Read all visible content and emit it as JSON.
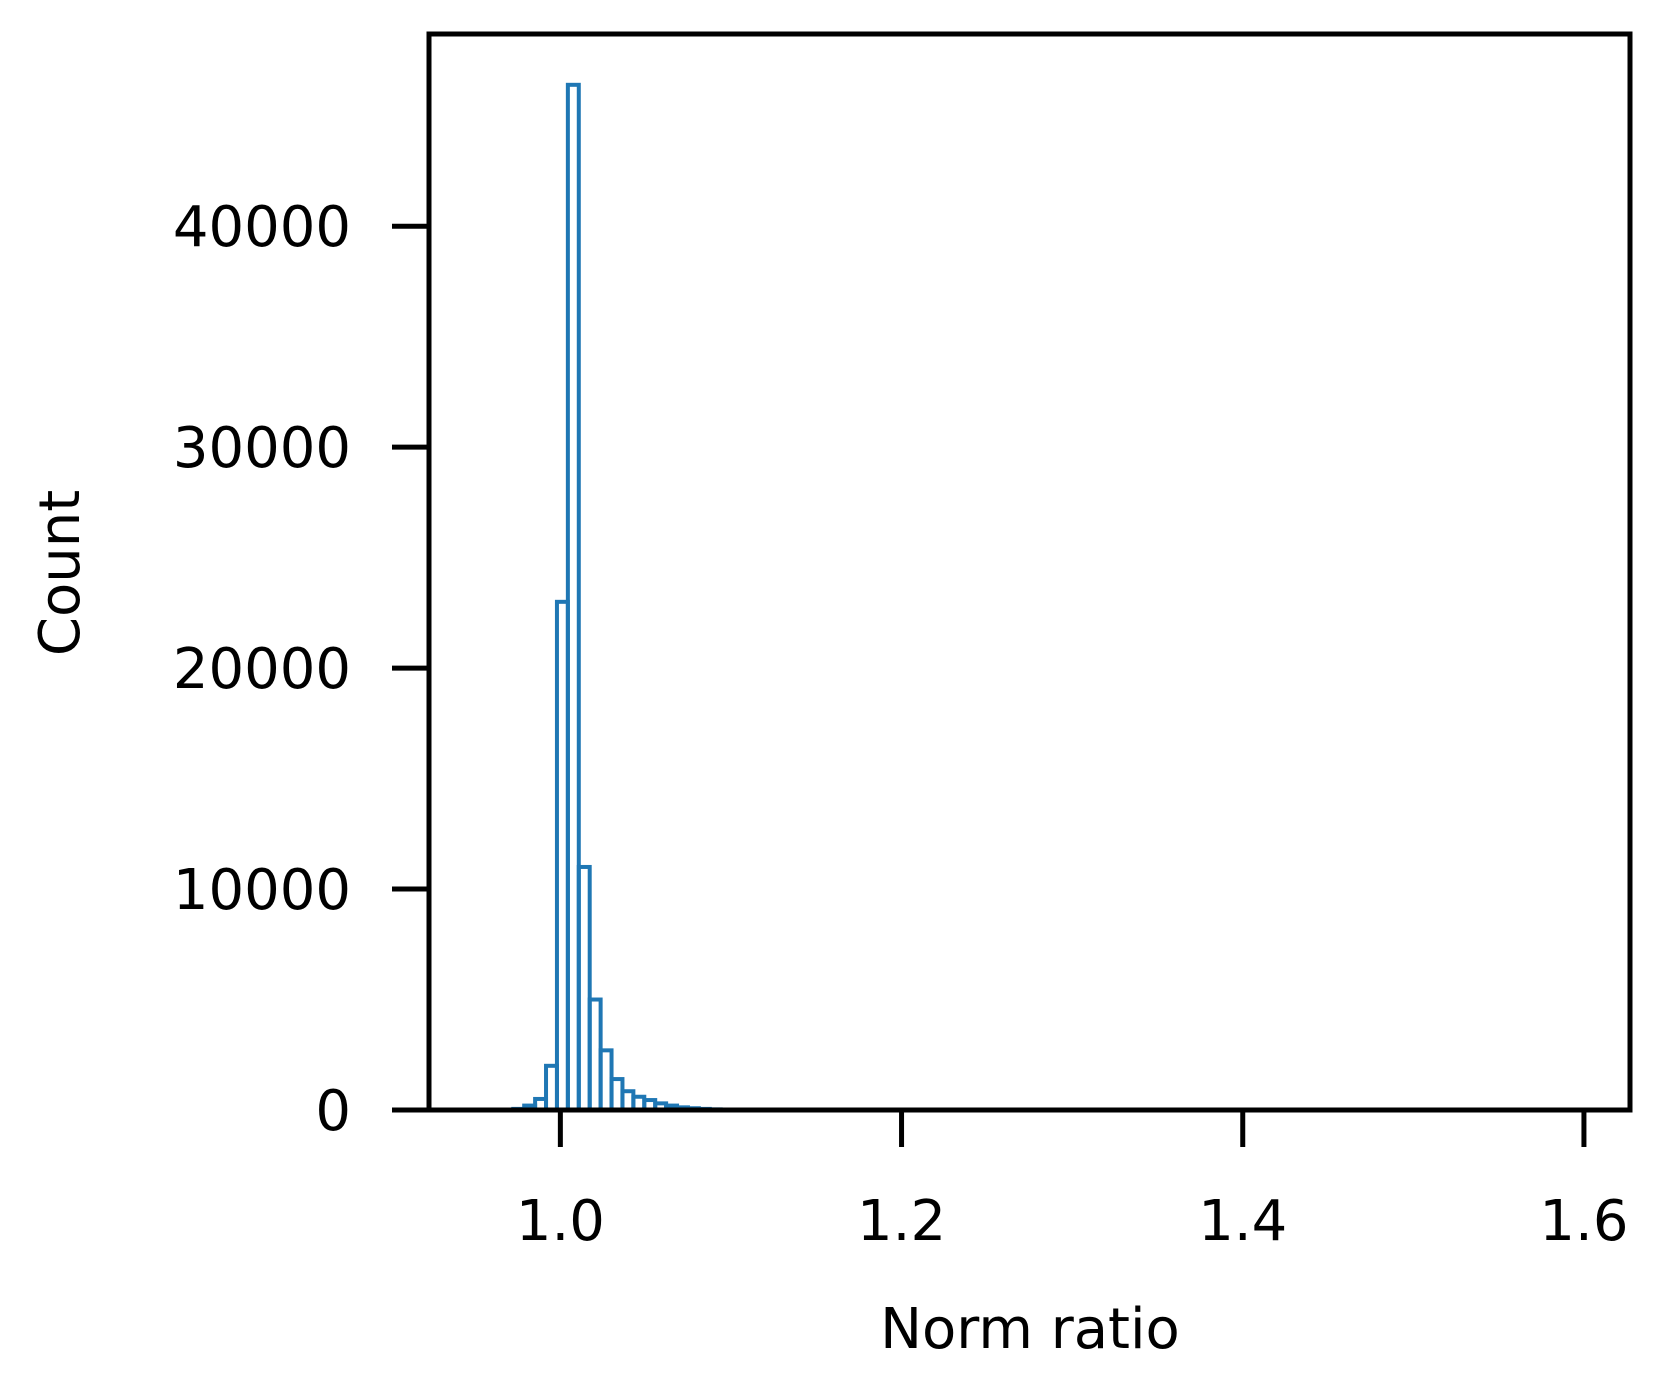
{
  "chart_data": {
    "type": "histogram",
    "title": "",
    "xlabel": "Norm ratio",
    "ylabel": "Count",
    "xlim": [
      0.923,
      1.627
    ],
    "ylim": [
      0,
      48700
    ],
    "xticks": [
      1.0,
      1.2,
      1.4,
      1.6
    ],
    "xtick_labels": [
      "1.0",
      "1.2",
      "1.4",
      "1.6"
    ],
    "yticks": [
      0,
      10000,
      20000,
      30000,
      40000
    ],
    "ytick_labels": [
      "0",
      "10000",
      "20000",
      "30000",
      "40000"
    ],
    "grid": false,
    "histtype": "step",
    "bin_width": 0.0064,
    "bin_start": 0.9724,
    "counts": [
      50,
      200,
      500,
      2000,
      23000,
      46400,
      11000,
      5000,
      2700,
      1400,
      850,
      600,
      450,
      300,
      200,
      120,
      80,
      50,
      30,
      20
    ],
    "style": {
      "line_color": "#1f77b4",
      "axis_color": "#000000"
    }
  }
}
